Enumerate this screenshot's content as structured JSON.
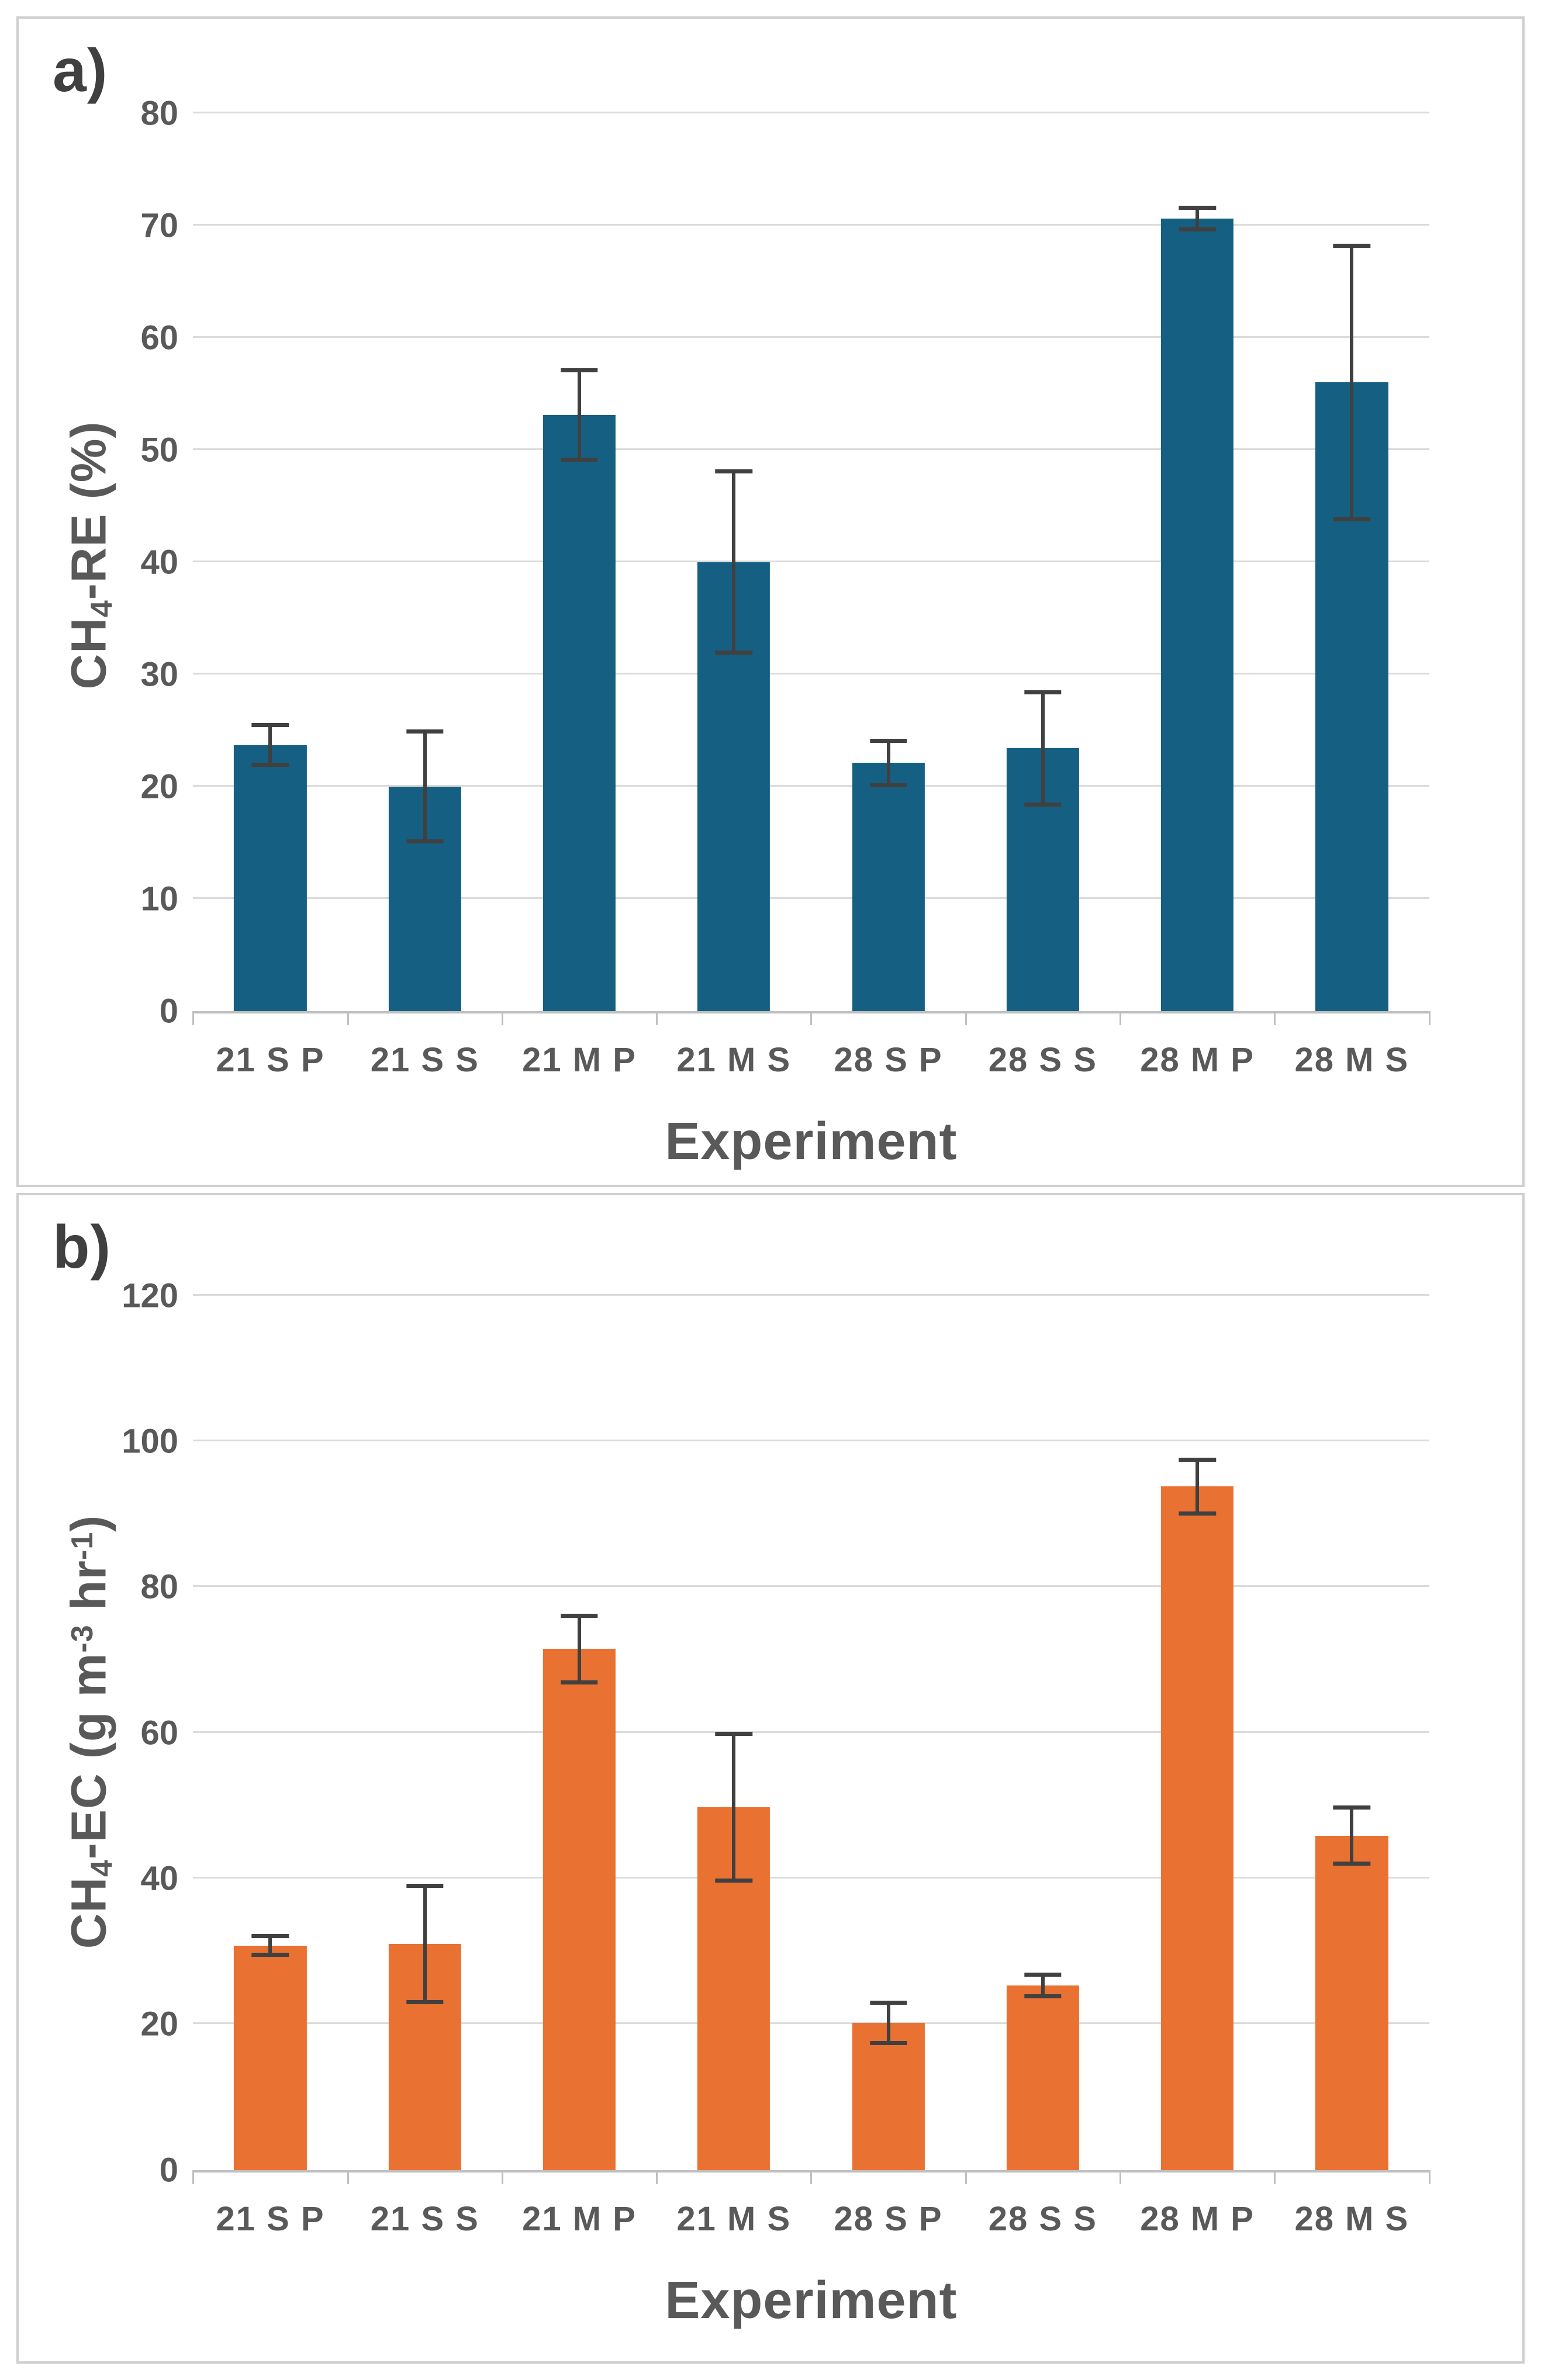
{
  "figure": {
    "colors": {
      "bar_panel_a": "#156082",
      "bar_panel_b": "#E97132",
      "error_bar": "#404040",
      "gridline": "#DBDBDB",
      "axis_line": "#BFBFBF",
      "text": "#595959",
      "panel_frame": "#CFCFCF",
      "corner_label": "#404040",
      "background": "#FFFFFF"
    }
  },
  "chart_data": [
    {
      "type": "bar",
      "panel_label": "a)",
      "title": "",
      "xlabel": "Experiment",
      "ylabel": "CH4-RE (%)",
      "ylabel_segments": [
        [
          "CH",
          "n"
        ],
        [
          "4",
          "sub"
        ],
        [
          "-RE (%)",
          "n"
        ]
      ],
      "categories": [
        "21 S P",
        "21 S S",
        "21 M P",
        "21 M S",
        "28 S P",
        "28 S S",
        "28 M P",
        "28 M S"
      ],
      "values": [
        23.7,
        20.0,
        53.1,
        40.0,
        22.1,
        23.4,
        70.6,
        56.0
      ],
      "errors": [
        1.6,
        4.7,
        3.8,
        7.9,
        1.8,
        4.8,
        0.8,
        12.0
      ],
      "ylim": [
        0,
        80
      ],
      "ytick_step": 10,
      "ytick_labels": [
        "0",
        "10",
        "20",
        "30",
        "40",
        "50",
        "60",
        "70",
        "80"
      ],
      "bar_color": "#156082",
      "grid": true,
      "legend": null
    },
    {
      "type": "bar",
      "panel_label": "b)",
      "title": "",
      "xlabel": "Experiment",
      "ylabel": "CH4-EC (g m-3 hr-1)",
      "ylabel_segments": [
        [
          "CH",
          "n"
        ],
        [
          "4",
          "sub"
        ],
        [
          "-EC (g m",
          "n"
        ],
        [
          "-3",
          "sup"
        ],
        [
          " hr",
          "n"
        ],
        [
          "-1",
          "sup"
        ],
        [
          ")",
          "n"
        ]
      ],
      "categories": [
        "21 S P",
        "21 S S",
        "21 M P",
        "21 M S",
        "28 S P",
        "28 S S",
        "28 M P",
        "28 M S"
      ],
      "values": [
        30.8,
        31.0,
        71.5,
        49.8,
        20.2,
        25.3,
        93.8,
        45.9
      ],
      "errors": [
        1.0,
        7.7,
        4.3,
        9.8,
        2.5,
        1.2,
        3.4,
        3.6
      ],
      "ylim": [
        0,
        120
      ],
      "ytick_step": 20,
      "ytick_labels": [
        "0",
        "20",
        "40",
        "60",
        "80",
        "100",
        "120"
      ],
      "bar_color": "#E97132",
      "grid": true,
      "legend": null
    }
  ]
}
